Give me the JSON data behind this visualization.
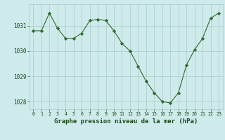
{
  "x": [
    0,
    1,
    2,
    3,
    4,
    5,
    6,
    7,
    8,
    9,
    10,
    11,
    12,
    13,
    14,
    15,
    16,
    17,
    18,
    19,
    20,
    21,
    22,
    23
  ],
  "y": [
    1030.8,
    1030.8,
    1031.5,
    1030.9,
    1030.5,
    1030.5,
    1030.7,
    1031.2,
    1031.25,
    1031.2,
    1030.8,
    1030.3,
    1030.0,
    1029.4,
    1028.8,
    1028.35,
    1028.0,
    1027.95,
    1028.35,
    1029.45,
    1030.05,
    1030.5,
    1031.3,
    1031.5
  ],
  "line_color": "#2d6a2d",
  "marker": "D",
  "marker_size": 2.2,
  "bg_color": "#ceeaea",
  "grid_color": "#aacaca",
  "xlabel": "Graphe pression niveau de la mer (hPa)",
  "xlabel_fontsize": 6.5,
  "tick_color": "#1a4a1a",
  "ylim": [
    1027.7,
    1031.85
  ],
  "yticks": [
    1028,
    1029,
    1030,
    1031
  ],
  "xlim": [
    -0.5,
    23.5
  ],
  "xticks": [
    0,
    1,
    2,
    3,
    4,
    5,
    6,
    7,
    8,
    9,
    10,
    11,
    12,
    13,
    14,
    15,
    16,
    17,
    18,
    19,
    20,
    21,
    22,
    23
  ]
}
